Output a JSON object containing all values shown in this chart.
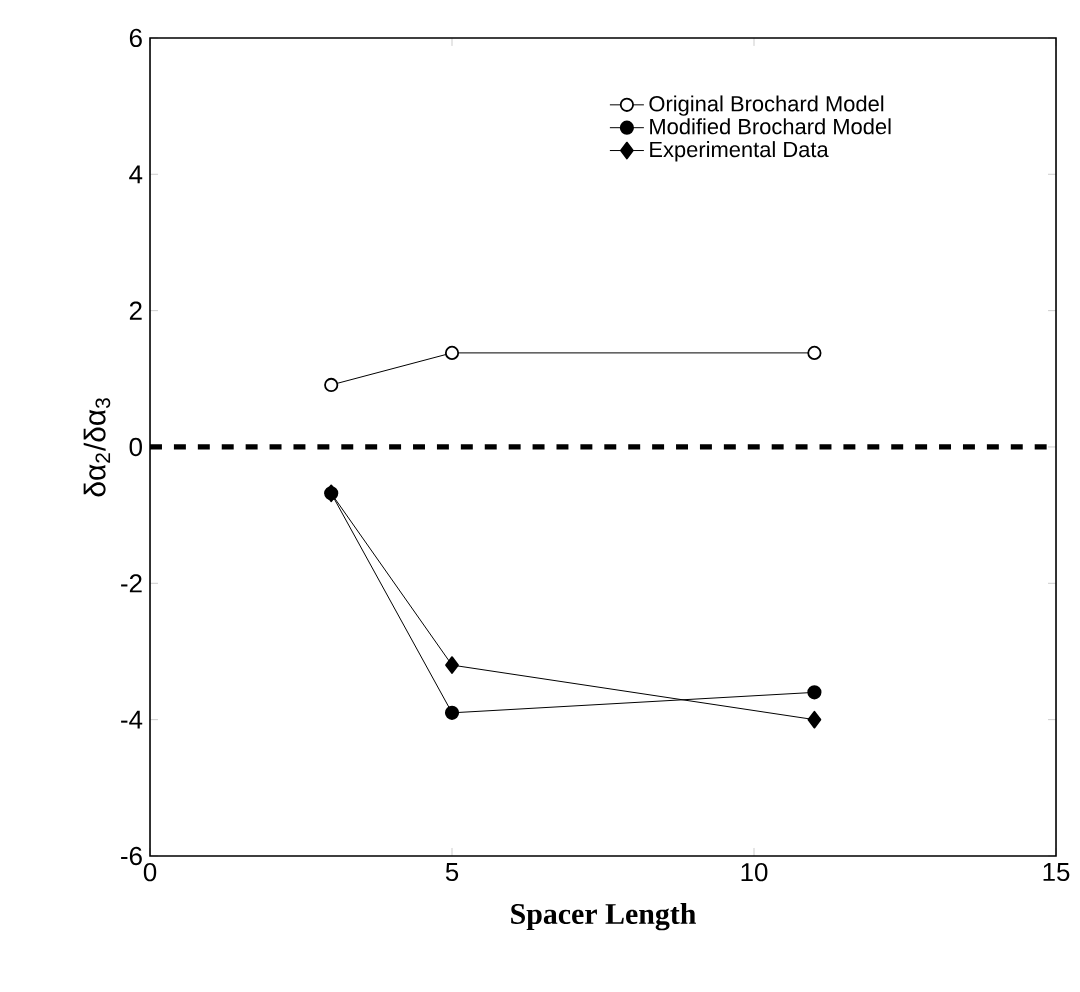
{
  "chart_data": {
    "type": "line",
    "xlabel": "Spacer Length",
    "ylabel": "δα$_{2}$/δα$_{3}$",
    "xlim": [
      0,
      15
    ],
    "xticks": [
      0,
      5,
      10,
      15
    ],
    "ylim": [
      -6,
      6
    ],
    "yticks": [
      -6,
      -4,
      -2,
      0,
      2,
      4,
      6
    ],
    "legend": "top right",
    "grid": false,
    "ref_lines": [
      {
        "axis": "y",
        "value": 0,
        "line_style": "dashed",
        "color": "#000000"
      }
    ],
    "series": [
      {
        "name": "Original Brochard Model",
        "color": "#ffffff",
        "marker": "circle",
        "x": [
          3,
          5,
          11
        ],
        "values": [
          0.91,
          1.38,
          1.38
        ]
      },
      {
        "name": "Modified Brochard Model",
        "color": "#000000",
        "marker": "circle",
        "x": [
          3,
          5,
          11
        ],
        "values": [
          -0.68,
          -3.9,
          -3.6
        ]
      },
      {
        "name": "Experimental Data",
        "color": "#000000",
        "marker": "diamond",
        "x": [
          3,
          5,
          11
        ],
        "values": [
          -0.68,
          -3.2,
          -4.0
        ]
      }
    ]
  }
}
